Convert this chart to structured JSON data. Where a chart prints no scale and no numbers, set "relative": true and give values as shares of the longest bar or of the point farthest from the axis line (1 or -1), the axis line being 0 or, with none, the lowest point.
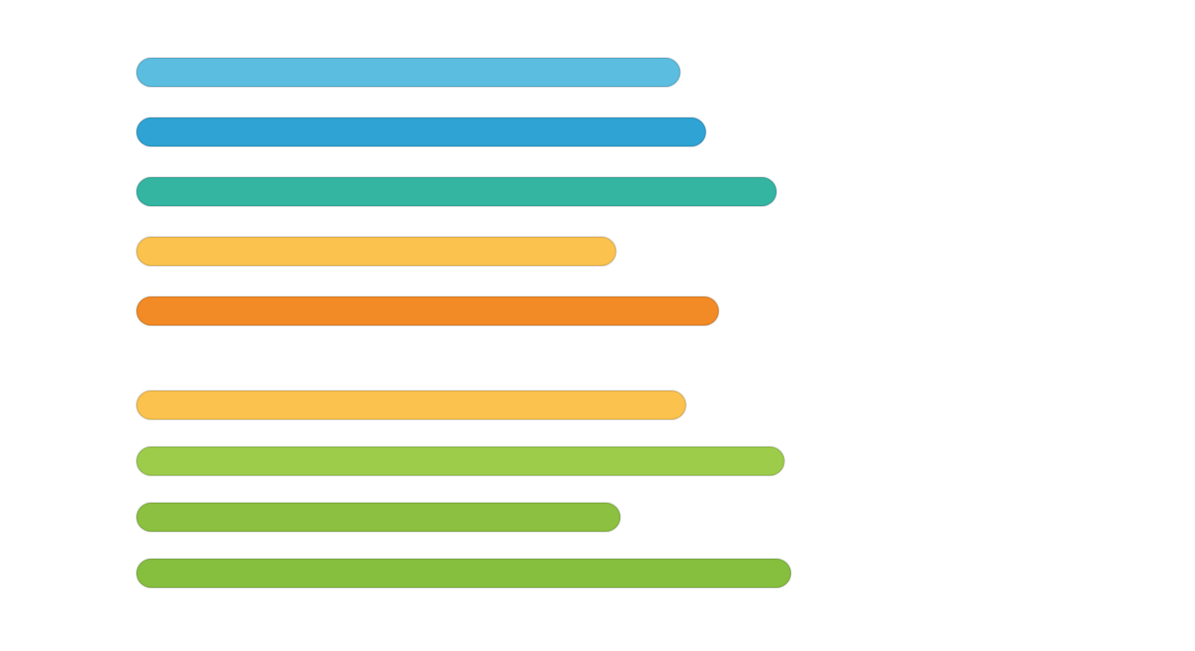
{
  "chart_data": [
    {
      "type": "bar",
      "orientation": "horizontal",
      "relative": true,
      "categories": [
        null,
        null,
        null,
        null,
        null
      ],
      "values": [
        0.85,
        0.89,
        1,
        0.75,
        0.91
      ],
      "colors": [
        "#5bbde0",
        "#2ea3d4",
        "#33b5a2",
        "#fbc24e",
        "#f28a26"
      ]
    },
    {
      "type": "bar",
      "orientation": "horizontal",
      "relative": true,
      "categories": [
        null,
        null,
        null,
        null
      ],
      "values": [
        0.84,
        0.99,
        0.74,
        1
      ],
      "colors": [
        "#fbc24e",
        "#9ccc4a",
        "#8cc040",
        "#86be3e"
      ]
    }
  ]
}
